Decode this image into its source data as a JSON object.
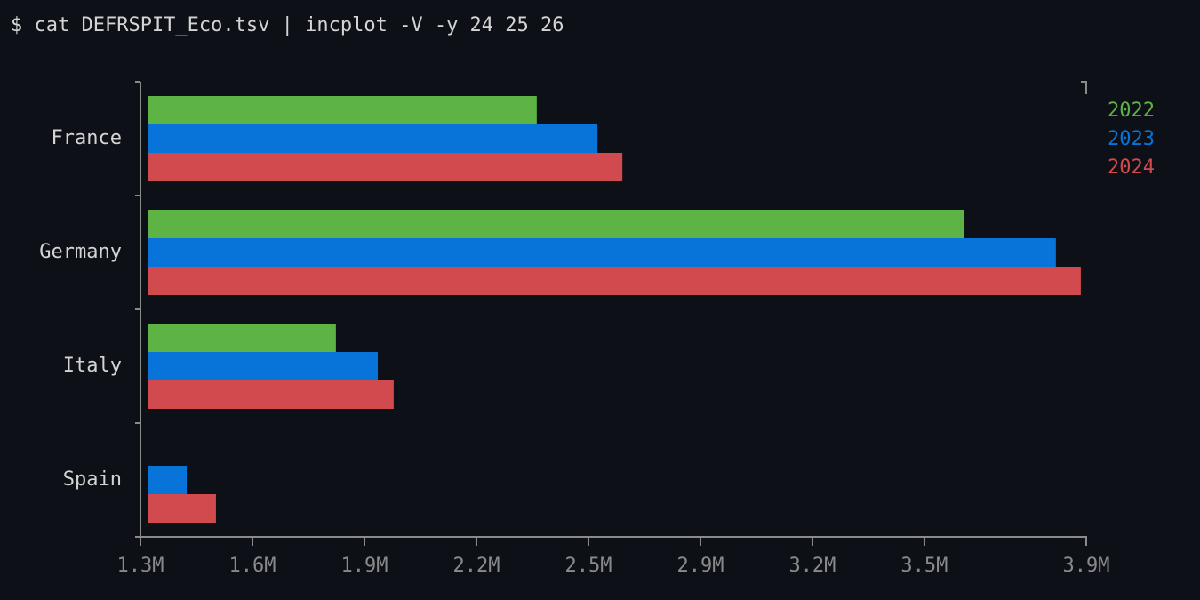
{
  "command": "$ cat DEFRSPIT_Eco.tsv | incplot -V -y 24 25 26",
  "chart_data": {
    "type": "hbar",
    "categories": [
      "France",
      "Germany",
      "Italy",
      "Spain"
    ],
    "series": [
      {
        "name": "2022",
        "color": "#5db444",
        "values": [
          2402000,
          3586000,
          1846000,
          null
        ]
      },
      {
        "name": "2023",
        "color": "#0874d9",
        "values": [
          2570000,
          3839000,
          1962000,
          1433000
        ]
      },
      {
        "name": "2024",
        "color": "#d14a4d",
        "values": [
          2639000,
          3908000,
          2006000,
          1514000
        ]
      }
    ],
    "xlim": [
      1305000,
      3923000
    ],
    "xticks": [
      {
        "value": 1305000,
        "label": "1.3M"
      },
      {
        "value": 1615000,
        "label": "1.6M"
      },
      {
        "value": 1925000,
        "label": "1.9M"
      },
      {
        "value": 2235000,
        "label": "2.2M"
      },
      {
        "value": 2545000,
        "label": "2.5M"
      },
      {
        "value": 2855000,
        "label": "2.9M"
      },
      {
        "value": 3165000,
        "label": "3.2M"
      },
      {
        "value": 3475000,
        "label": "3.5M"
      },
      {
        "value": 3923000,
        "label": "3.9M"
      }
    ],
    "legend": "upper right"
  }
}
